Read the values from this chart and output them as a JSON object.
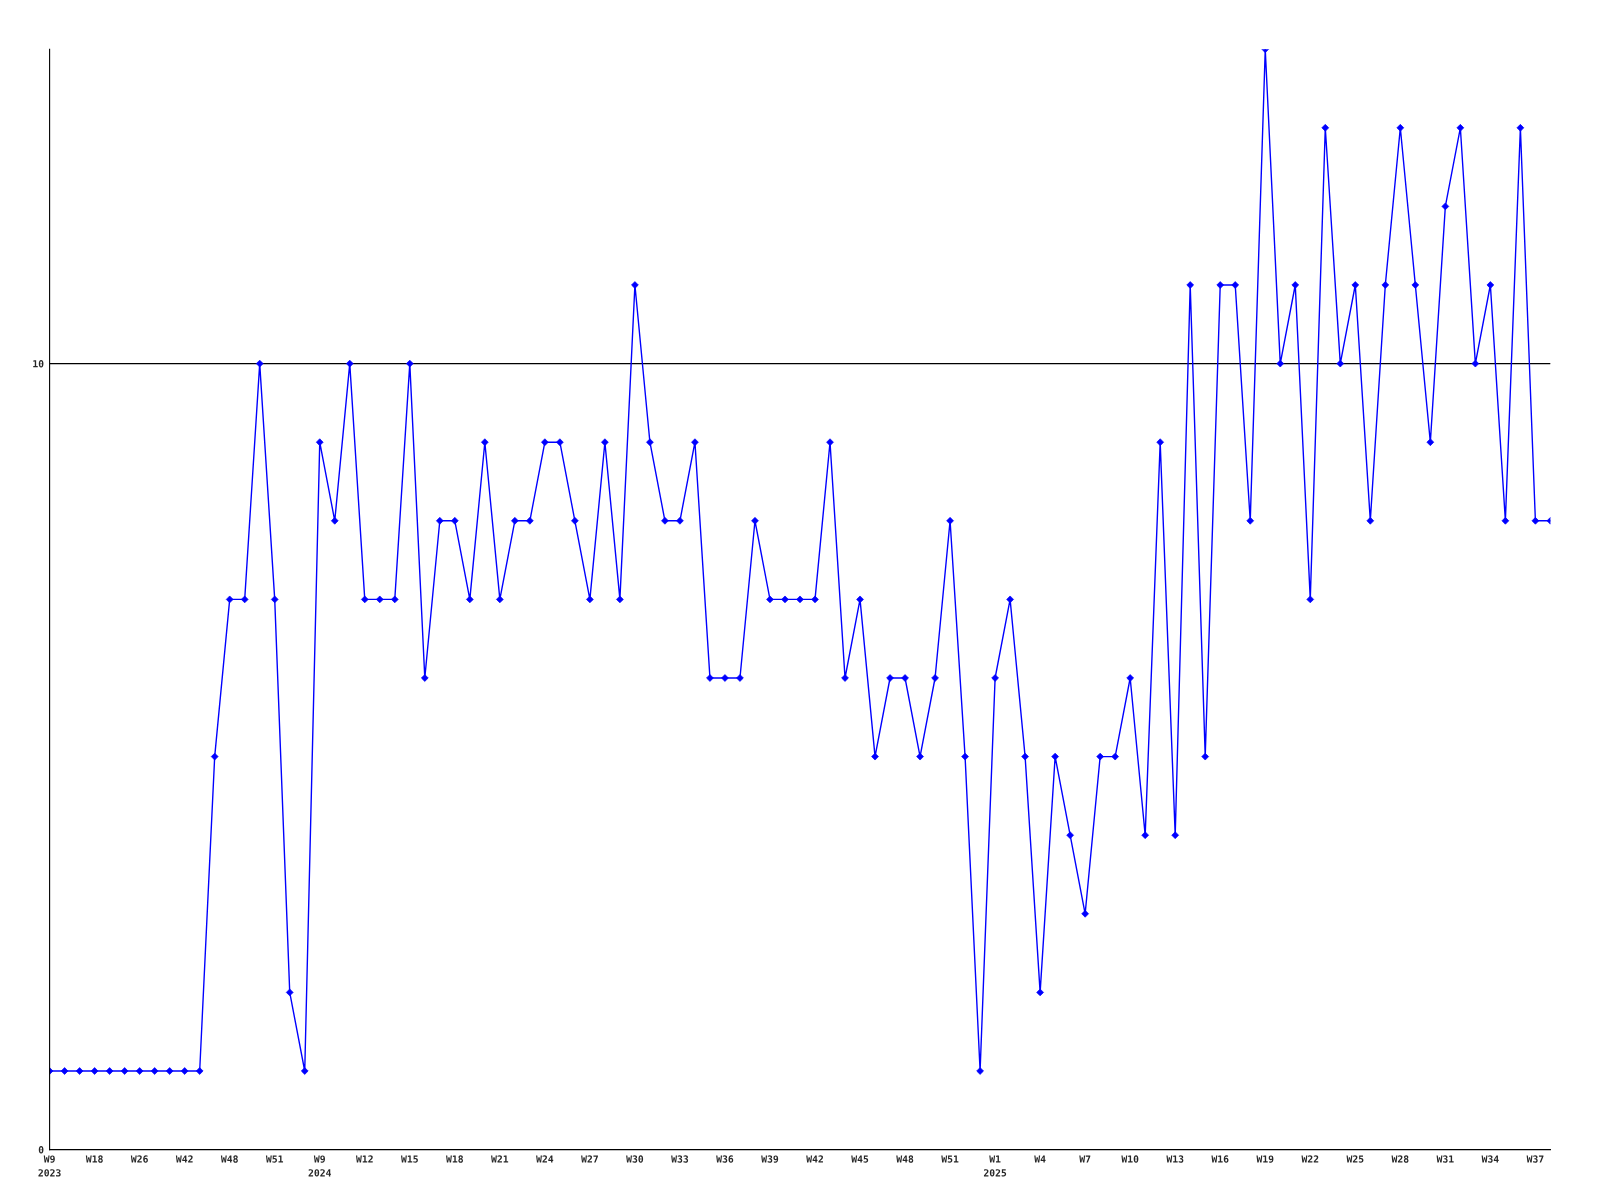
{
  "chart_data": {
    "type": "line",
    "categories": [
      "W9\n2023",
      null,
      null,
      "W18",
      null,
      null,
      "W26",
      null,
      null,
      "W42",
      null,
      null,
      "W48",
      null,
      null,
      "W51",
      null,
      null,
      "W9\n2024",
      null,
      null,
      "W12",
      null,
      null,
      "W15",
      null,
      null,
      "W18",
      null,
      null,
      "W21",
      null,
      null,
      "W24",
      null,
      null,
      "W27",
      null,
      null,
      "W30",
      null,
      null,
      "W33",
      null,
      null,
      "W36",
      null,
      null,
      "W39",
      null,
      null,
      "W42",
      null,
      null,
      "W45",
      null,
      null,
      "W48",
      null,
      null,
      "W51",
      null,
      null,
      "W1\n2025",
      null,
      null,
      "W4",
      null,
      null,
      "W7",
      null,
      null,
      "W10",
      null,
      null,
      "W13",
      null,
      null,
      "W16",
      null,
      null,
      "W19",
      null,
      null,
      "W22",
      null,
      null,
      "W25",
      null,
      null,
      "W28",
      null,
      null,
      "W31",
      null,
      null,
      "W34",
      null,
      null,
      "W37",
      null
    ],
    "series": [
      {
        "color": "#0000ff",
        "values": [
          1,
          1,
          1,
          1,
          1,
          1,
          1,
          1,
          1,
          1,
          1,
          5,
          7,
          7,
          10,
          7,
          2,
          1,
          9,
          8,
          10,
          7,
          7,
          7,
          10,
          6,
          8,
          8,
          7,
          9,
          7,
          8,
          8,
          9,
          9,
          8,
          7,
          9,
          7,
          11,
          9,
          8,
          8,
          9,
          6,
          6,
          6,
          8,
          7,
          7,
          7,
          7,
          9,
          6,
          7,
          5,
          6,
          6,
          5,
          6,
          8,
          5,
          1,
          6,
          7,
          5,
          2,
          5,
          4,
          3,
          5,
          5,
          6,
          4,
          9,
          4,
          11,
          5,
          11,
          11,
          8,
          14,
          10,
          11,
          7,
          13,
          10,
          11,
          8,
          11,
          13,
          11,
          9,
          12,
          13,
          10,
          11,
          8,
          13,
          8,
          8
        ]
      }
    ],
    "ylim": [
      0,
      14
    ],
    "yticks": [
      0,
      10
    ],
    "grid": "y",
    "marker": "diamond",
    "line_style": "solid"
  }
}
